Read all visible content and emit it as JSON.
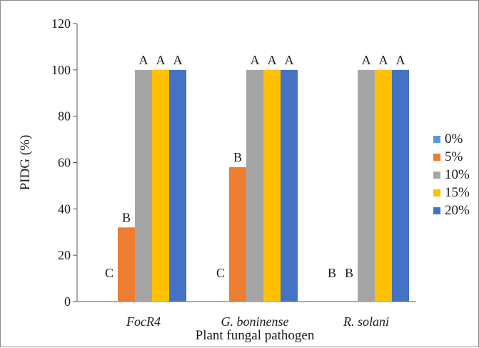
{
  "chart_data": {
    "type": "bar",
    "title": "",
    "xlabel": "Plant fungal pathogen",
    "ylabel": "PIDG (%)",
    "ylim": [
      0,
      120
    ],
    "yticks": [
      0,
      20,
      40,
      60,
      80,
      100,
      120
    ],
    "categories": [
      "FocR4",
      "G. boninense",
      "R. solani"
    ],
    "series": [
      {
        "name": "0%",
        "color": "#5b9bd5",
        "values": [
          0,
          0,
          0
        ],
        "letters": [
          "C",
          "C",
          "B"
        ]
      },
      {
        "name": "5%",
        "color": "#ed7d31",
        "values": [
          32,
          58,
          0
        ],
        "letters": [
          "B",
          "B",
          "B"
        ]
      },
      {
        "name": "10%",
        "color": "#a5a5a5",
        "values": [
          100,
          100,
          100
        ],
        "letters": [
          "A",
          "A",
          "A"
        ]
      },
      {
        "name": "15%",
        "color": "#ffc000",
        "values": [
          100,
          100,
          100
        ],
        "letters": [
          "A",
          "A",
          "A"
        ]
      },
      {
        "name": "20%",
        "color": "#4472c4",
        "values": [
          100,
          100,
          100
        ],
        "letters": [
          "A",
          "A",
          "A"
        ]
      }
    ],
    "legend_position": "right",
    "grid": false
  }
}
